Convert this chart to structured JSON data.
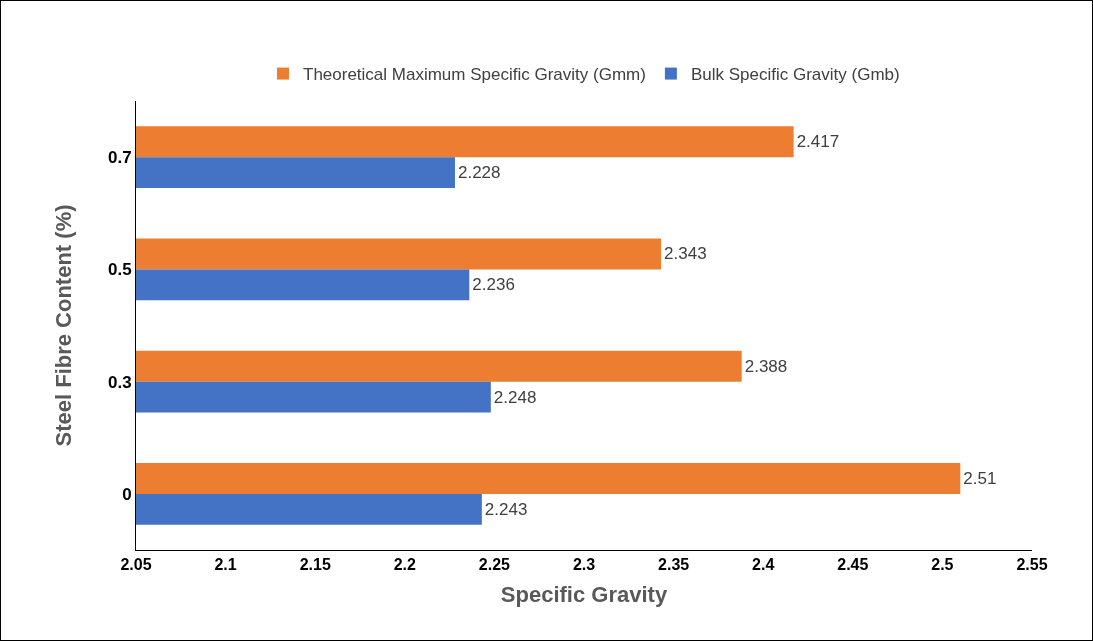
{
  "chart_data": {
    "type": "bar",
    "orientation": "horizontal",
    "xlabel": "Specific Gravity",
    "ylabel": "Steel Fibre Content (%)",
    "categories": [
      "0.7",
      "0.5",
      "0.3",
      "0"
    ],
    "series": [
      {
        "name": "Theoretical Maximum Specific Gravity (Gmm)",
        "color": "#ed7d31",
        "values": [
          2.417,
          2.343,
          2.388,
          2.51
        ]
      },
      {
        "name": "Bulk Specific Gravity (Gmb)",
        "color": "#4472c4",
        "values": [
          2.228,
          2.236,
          2.248,
          2.243
        ]
      }
    ],
    "xlim": [
      2.05,
      2.55
    ],
    "xticks": [
      2.05,
      2.1,
      2.15,
      2.2,
      2.25,
      2.3,
      2.35,
      2.4,
      2.45,
      2.5,
      2.55
    ],
    "data_labels": true,
    "grid": false,
    "legend": "top"
  }
}
